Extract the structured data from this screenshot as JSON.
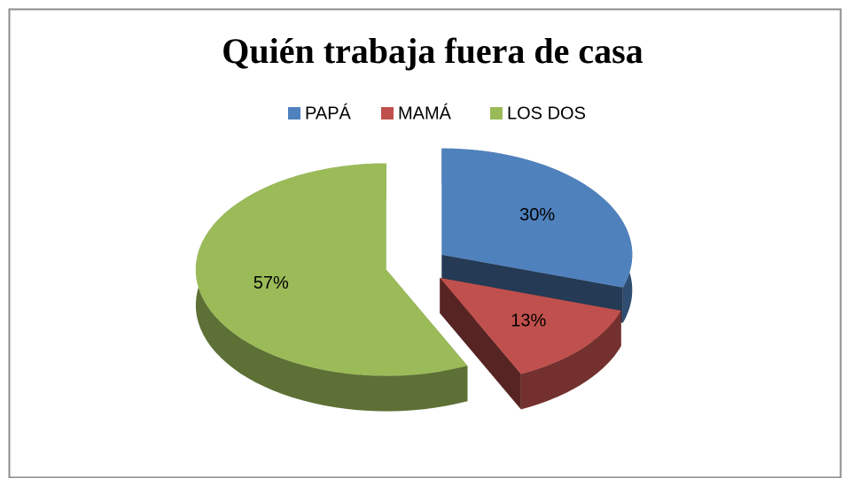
{
  "chart_data": {
    "type": "pie",
    "title": "Quién trabaja fuera de casa",
    "categories": [
      "PAPÁ",
      "MAMÁ",
      "LOS DOS"
    ],
    "values": [
      30,
      13,
      57
    ],
    "value_labels": [
      "30%",
      "13%",
      "57%"
    ],
    "colors": [
      "#4f81bd",
      "#c0504d",
      "#9bbb59"
    ],
    "legend": "top"
  }
}
